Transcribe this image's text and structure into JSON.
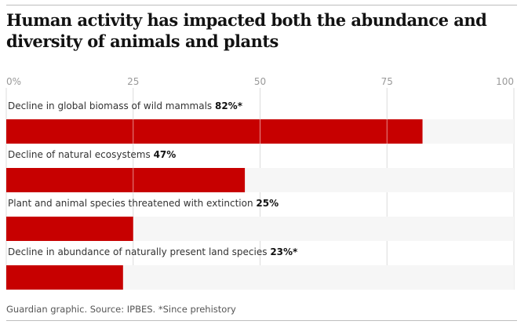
{
  "header": {
    "title": "Human activity has impacted both the abundance and diversity of animals and plants"
  },
  "chart_data": {
    "type": "bar",
    "orientation": "horizontal",
    "title": "Human activity has impacted both the abundance and diversity of animals and plants",
    "categories": [
      "Decline in global biomass of wild mammals",
      "Decline of natural ecosystems",
      "Plant and animal species threatened with extinction",
      "Decline in abundance of naturally present land species"
    ],
    "values": [
      82,
      47,
      25,
      23
    ],
    "value_labels": [
      "82%*",
      "47%",
      "25%",
      "23%*"
    ],
    "ticks": [
      0,
      25,
      50,
      75,
      100
    ],
    "tick_labels": [
      "0%",
      "25",
      "50",
      "75",
      "100"
    ],
    "xlim": [
      0,
      100
    ],
    "bar_color": "#c70000",
    "track_color": "#f6f6f6",
    "grid": true
  },
  "footer": {
    "source": "Guardian graphic. Source: IPBES. *Since prehistory"
  }
}
